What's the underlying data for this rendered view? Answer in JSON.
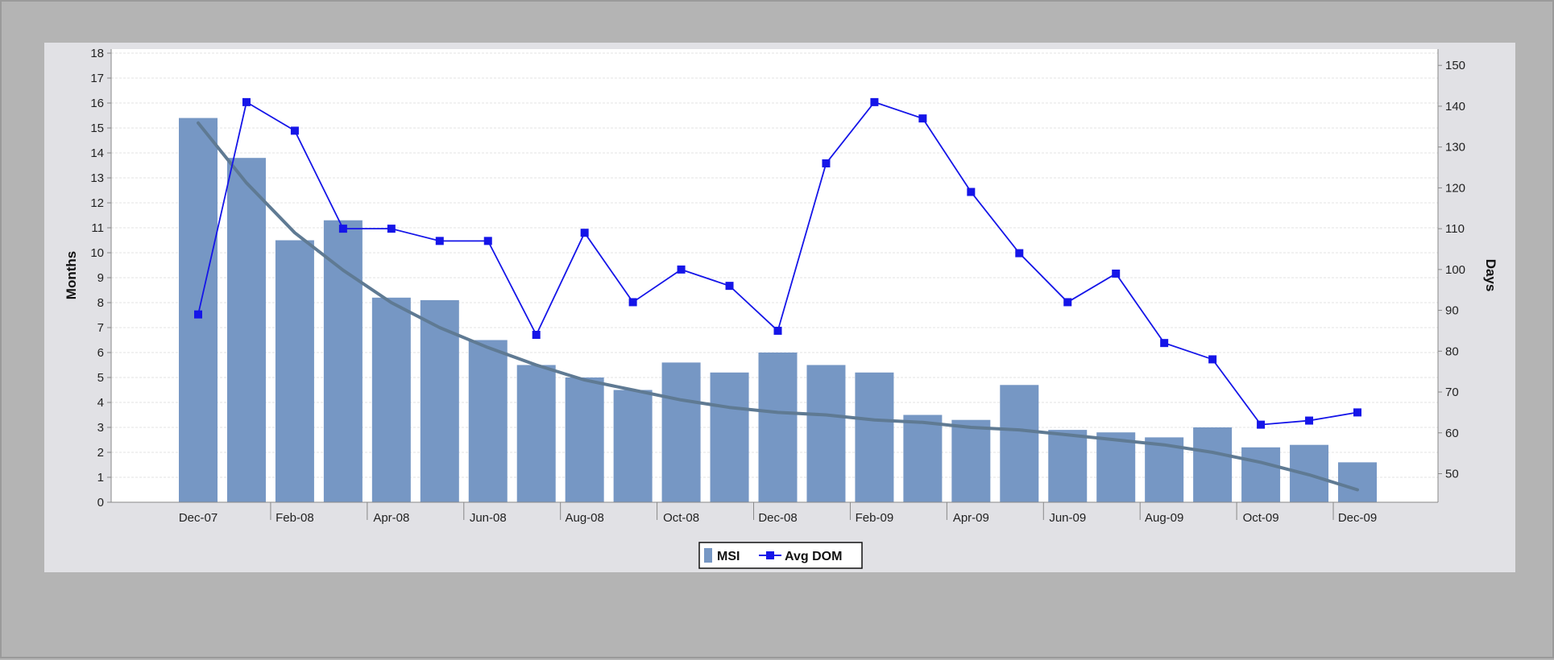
{
  "chart_data": {
    "type": "bar",
    "categories": [
      "Dec-07",
      "Jan-08",
      "Feb-08",
      "Mar-08",
      "Apr-08",
      "May-08",
      "Jun-08",
      "Jul-08",
      "Aug-08",
      "Sep-08",
      "Oct-08",
      "Nov-08",
      "Dec-08",
      "Jan-09",
      "Feb-09",
      "Mar-09",
      "Apr-09",
      "May-09",
      "Jun-09",
      "Jul-09",
      "Aug-09",
      "Sep-09",
      "Oct-09",
      "Nov-09",
      "Dec-09"
    ],
    "x_tick_labels": [
      "Dec-07",
      "Feb-08",
      "Apr-08",
      "Jun-08",
      "Aug-08",
      "Oct-08",
      "Dec-08",
      "Feb-09",
      "Apr-09",
      "Jun-09",
      "Aug-09",
      "Oct-09",
      "Dec-09"
    ],
    "series": [
      {
        "name": "MSI",
        "type": "bar",
        "axis": "left",
        "color": "#7697c4",
        "values": [
          15.4,
          13.8,
          10.5,
          11.3,
          8.2,
          8.1,
          6.5,
          5.5,
          5.0,
          4.5,
          5.6,
          5.2,
          6.0,
          5.5,
          5.2,
          3.5,
          3.3,
          4.7,
          2.9,
          2.8,
          2.6,
          3.0,
          2.2,
          2.3,
          1.6
        ]
      },
      {
        "name": "Avg DOM",
        "type": "line",
        "axis": "right",
        "color": "#1515e8",
        "values": [
          89,
          141,
          134,
          110,
          110,
          107,
          107,
          84,
          109,
          92,
          100,
          96,
          85,
          126,
          141,
          137,
          119,
          104,
          92,
          99,
          82,
          78,
          62,
          63,
          65
        ]
      },
      {
        "type": "trend",
        "axis": "left",
        "color": "#5f7a93",
        "values": [
          15.2,
          12.8,
          10.8,
          9.3,
          8.0,
          7.0,
          6.2,
          5.5,
          4.9,
          4.5,
          4.1,
          3.8,
          3.6,
          3.5,
          3.3,
          3.2,
          3.0,
          2.9,
          2.7,
          2.5,
          2.3,
          2.0,
          1.6,
          1.1,
          0.5
        ]
      }
    ],
    "y_left": {
      "label": "Months",
      "ylim": [
        0,
        18
      ],
      "ticks": [
        "0",
        "1",
        "2",
        "3",
        "4",
        "5",
        "6",
        "7",
        "8",
        "9",
        "10",
        "11",
        "12",
        "13",
        "14",
        "15",
        "16",
        "17",
        "18"
      ]
    },
    "y_right": {
      "label": "Days",
      "ylim": [
        43,
        153
      ],
      "ticks": [
        "50",
        "60",
        "70",
        "80",
        "90",
        "100",
        "110",
        "120",
        "130",
        "140",
        "150"
      ]
    },
    "legend": {
      "position": "bottom-center",
      "entries": [
        "MSI",
        "Avg DOM"
      ]
    },
    "grid": true
  },
  "colors": {
    "page_background": "#b4b4b4",
    "panel_background": "#e1e1e5",
    "plot_background": "#ffffff",
    "gridline": "#e3e3e3",
    "axis": "#888888"
  }
}
